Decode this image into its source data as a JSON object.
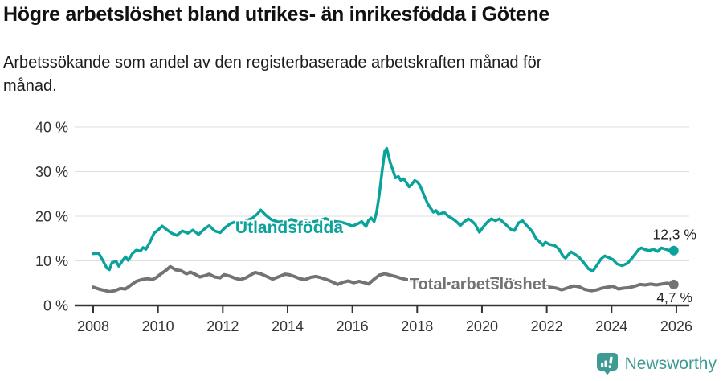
{
  "header": {
    "title": "Högre arbetslöshet bland utrikes- än inrikesfödda i Götene",
    "subtitle_lines": [
      "Arbetssökande som andel av den registerbaserade arbetskraften månad för",
      "månad."
    ]
  },
  "footer": {
    "brand": "Newsworthy",
    "logo_icon": "newsworthy-chart-bubble-icon"
  },
  "colors": {
    "series_foreign_born": "#0ba29b",
    "series_total": "#737373",
    "axis": "#333333",
    "grid": "#dddddd",
    "brand_teal": "#3f9a94",
    "background": "#ffffff",
    "text": "#111111"
  },
  "chart_data": {
    "type": "line",
    "title": "Högre arbetslöshet bland utrikes- än inrikesfödda i Götene",
    "subtitle": "Arbetssökande som andel av den registerbaserade arbetskraften månad för månad.",
    "xlabel": "",
    "ylabel": "",
    "y_unit": "%",
    "x_domain": [
      2007.4,
      2026.5
    ],
    "y_domain": [
      0,
      42.5
    ],
    "x_ticks": [
      2008,
      2010,
      2012,
      2014,
      2016,
      2018,
      2020,
      2022,
      2024,
      2026
    ],
    "y_ticks": [
      0,
      10,
      20,
      30,
      40
    ],
    "grid": "horizontal",
    "legend_position": "inline-labels",
    "series": [
      {
        "name": "Utlandsfödda",
        "color": "#0ba29b",
        "end_label": "12,3 %",
        "end_value": 12.3,
        "label_year": 2014.05,
        "label_value": 16.2,
        "points": [
          [
            2008.0,
            11.6
          ],
          [
            2008.17,
            11.7
          ],
          [
            2008.29,
            10.2
          ],
          [
            2008.42,
            8.4
          ],
          [
            2008.5,
            8.0
          ],
          [
            2008.58,
            9.6
          ],
          [
            2008.71,
            9.9
          ],
          [
            2008.79,
            8.8
          ],
          [
            2008.92,
            10.2
          ],
          [
            2009.0,
            10.9
          ],
          [
            2009.08,
            10.1
          ],
          [
            2009.21,
            11.6
          ],
          [
            2009.33,
            12.4
          ],
          [
            2009.46,
            12.2
          ],
          [
            2009.54,
            13.0
          ],
          [
            2009.63,
            12.6
          ],
          [
            2009.75,
            14.2
          ],
          [
            2009.88,
            16.2
          ],
          [
            2010.0,
            16.9
          ],
          [
            2010.13,
            17.8
          ],
          [
            2010.25,
            17.1
          ],
          [
            2010.42,
            16.2
          ],
          [
            2010.58,
            15.7
          ],
          [
            2010.75,
            16.7
          ],
          [
            2010.92,
            16.2
          ],
          [
            2011.08,
            16.9
          ],
          [
            2011.25,
            15.9
          ],
          [
            2011.46,
            17.3
          ],
          [
            2011.58,
            17.9
          ],
          [
            2011.75,
            16.7
          ],
          [
            2011.92,
            16.3
          ],
          [
            2012.08,
            17.5
          ],
          [
            2012.25,
            18.4
          ],
          [
            2012.42,
            18.8
          ],
          [
            2012.58,
            18.5
          ],
          [
            2012.75,
            19.1
          ],
          [
            2012.92,
            19.6
          ],
          [
            2013.08,
            20.6
          ],
          [
            2013.17,
            21.4
          ],
          [
            2013.33,
            20.2
          ],
          [
            2013.5,
            19.2
          ],
          [
            2013.71,
            18.7
          ],
          [
            2013.92,
            18.9
          ],
          [
            2014.13,
            19.3
          ],
          [
            2014.33,
            18.7
          ],
          [
            2014.54,
            19.1
          ],
          [
            2014.75,
            18.7
          ],
          [
            2014.96,
            19.0
          ],
          [
            2015.17,
            19.5
          ],
          [
            2015.38,
            18.9
          ],
          [
            2015.63,
            18.7
          ],
          [
            2015.83,
            18.3
          ],
          [
            2016.0,
            17.8
          ],
          [
            2016.17,
            18.3
          ],
          [
            2016.29,
            18.8
          ],
          [
            2016.42,
            17.7
          ],
          [
            2016.5,
            19.1
          ],
          [
            2016.58,
            19.6
          ],
          [
            2016.67,
            18.8
          ],
          [
            2016.75,
            21.0
          ],
          [
            2016.83,
            24.8
          ],
          [
            2016.92,
            30.2
          ],
          [
            2017.0,
            34.6
          ],
          [
            2017.06,
            35.2
          ],
          [
            2017.17,
            32.0
          ],
          [
            2017.25,
            30.3
          ],
          [
            2017.33,
            28.6
          ],
          [
            2017.42,
            28.9
          ],
          [
            2017.5,
            28.0
          ],
          [
            2017.58,
            28.4
          ],
          [
            2017.67,
            27.5
          ],
          [
            2017.75,
            26.6
          ],
          [
            2017.83,
            27.1
          ],
          [
            2017.92,
            28.0
          ],
          [
            2018.0,
            27.7
          ],
          [
            2018.08,
            27.0
          ],
          [
            2018.17,
            25.4
          ],
          [
            2018.33,
            22.7
          ],
          [
            2018.5,
            20.9
          ],
          [
            2018.58,
            21.3
          ],
          [
            2018.67,
            20.4
          ],
          [
            2018.83,
            20.9
          ],
          [
            2018.96,
            20.0
          ],
          [
            2019.08,
            19.5
          ],
          [
            2019.21,
            18.8
          ],
          [
            2019.33,
            17.9
          ],
          [
            2019.46,
            18.8
          ],
          [
            2019.58,
            19.4
          ],
          [
            2019.67,
            19.0
          ],
          [
            2019.79,
            18.2
          ],
          [
            2019.92,
            16.4
          ],
          [
            2020.04,
            17.6
          ],
          [
            2020.17,
            18.7
          ],
          [
            2020.29,
            19.4
          ],
          [
            2020.42,
            19.0
          ],
          [
            2020.54,
            19.4
          ],
          [
            2020.71,
            18.3
          ],
          [
            2020.88,
            17.1
          ],
          [
            2021.0,
            16.8
          ],
          [
            2021.13,
            18.5
          ],
          [
            2021.25,
            19.0
          ],
          [
            2021.42,
            17.6
          ],
          [
            2021.54,
            16.7
          ],
          [
            2021.67,
            15.0
          ],
          [
            2021.79,
            14.2
          ],
          [
            2021.88,
            13.5
          ],
          [
            2021.96,
            14.2
          ],
          [
            2022.08,
            13.7
          ],
          [
            2022.25,
            13.4
          ],
          [
            2022.38,
            12.6
          ],
          [
            2022.5,
            11.1
          ],
          [
            2022.58,
            10.6
          ],
          [
            2022.67,
            11.4
          ],
          [
            2022.75,
            12.0
          ],
          [
            2022.88,
            11.4
          ],
          [
            2023.0,
            10.8
          ],
          [
            2023.13,
            9.7
          ],
          [
            2023.29,
            8.2
          ],
          [
            2023.42,
            7.7
          ],
          [
            2023.54,
            8.9
          ],
          [
            2023.67,
            10.4
          ],
          [
            2023.79,
            11.1
          ],
          [
            2023.92,
            10.7
          ],
          [
            2024.04,
            10.3
          ],
          [
            2024.17,
            9.3
          ],
          [
            2024.33,
            8.9
          ],
          [
            2024.5,
            9.5
          ],
          [
            2024.63,
            10.6
          ],
          [
            2024.75,
            11.7
          ],
          [
            2024.83,
            12.5
          ],
          [
            2024.92,
            12.9
          ],
          [
            2025.04,
            12.5
          ],
          [
            2025.17,
            12.3
          ],
          [
            2025.29,
            12.6
          ],
          [
            2025.42,
            12.1
          ],
          [
            2025.54,
            12.9
          ],
          [
            2025.67,
            12.6
          ],
          [
            2025.79,
            12.3
          ],
          [
            2025.92,
            12.3
          ]
        ]
      },
      {
        "name": "Total arbetslöshet",
        "color": "#737373",
        "end_label": "4,7 %",
        "end_value": 4.7,
        "label_year": 2019.88,
        "label_value": 3.6,
        "points": [
          [
            2008.0,
            4.1
          ],
          [
            2008.17,
            3.7
          ],
          [
            2008.33,
            3.4
          ],
          [
            2008.5,
            3.1
          ],
          [
            2008.67,
            3.3
          ],
          [
            2008.83,
            3.8
          ],
          [
            2009.0,
            3.7
          ],
          [
            2009.17,
            4.6
          ],
          [
            2009.33,
            5.4
          ],
          [
            2009.5,
            5.8
          ],
          [
            2009.67,
            6.0
          ],
          [
            2009.83,
            5.8
          ],
          [
            2009.96,
            6.3
          ],
          [
            2010.08,
            7.0
          ],
          [
            2010.25,
            7.9
          ],
          [
            2010.38,
            8.7
          ],
          [
            2010.54,
            8.0
          ],
          [
            2010.71,
            7.8
          ],
          [
            2010.88,
            7.1
          ],
          [
            2011.0,
            7.5
          ],
          [
            2011.17,
            6.9
          ],
          [
            2011.29,
            6.4
          ],
          [
            2011.46,
            6.7
          ],
          [
            2011.58,
            7.0
          ],
          [
            2011.75,
            6.4
          ],
          [
            2011.92,
            6.2
          ],
          [
            2012.04,
            6.9
          ],
          [
            2012.21,
            6.6
          ],
          [
            2012.38,
            6.1
          ],
          [
            2012.54,
            5.8
          ],
          [
            2012.71,
            6.2
          ],
          [
            2012.88,
            6.9
          ],
          [
            2013.0,
            7.4
          ],
          [
            2013.17,
            7.1
          ],
          [
            2013.33,
            6.6
          ],
          [
            2013.54,
            5.9
          ],
          [
            2013.71,
            6.4
          ],
          [
            2013.92,
            7.0
          ],
          [
            2014.04,
            6.9
          ],
          [
            2014.21,
            6.5
          ],
          [
            2014.38,
            6.0
          ],
          [
            2014.54,
            5.8
          ],
          [
            2014.71,
            6.3
          ],
          [
            2014.88,
            6.5
          ],
          [
            2015.04,
            6.2
          ],
          [
            2015.21,
            5.8
          ],
          [
            2015.38,
            5.3
          ],
          [
            2015.54,
            4.7
          ],
          [
            2015.71,
            5.2
          ],
          [
            2015.88,
            5.5
          ],
          [
            2016.04,
            5.1
          ],
          [
            2016.21,
            5.4
          ],
          [
            2016.38,
            5.1
          ],
          [
            2016.5,
            4.8
          ],
          [
            2016.67,
            5.9
          ],
          [
            2016.83,
            6.8
          ],
          [
            2017.0,
            7.1
          ],
          [
            2017.17,
            6.8
          ],
          [
            2017.33,
            6.5
          ],
          [
            2017.5,
            6.1
          ],
          [
            2017.67,
            5.8
          ],
          [
            2017.88,
            5.6
          ],
          [
            2018.08,
            5.4
          ],
          [
            2018.33,
            5.1
          ],
          [
            2018.58,
            4.9
          ],
          [
            2018.83,
            4.8
          ],
          [
            2019.08,
            4.9
          ],
          [
            2019.33,
            5.1
          ],
          [
            2019.58,
            5.2
          ],
          [
            2019.83,
            5.1
          ],
          [
            2020.08,
            5.5
          ],
          [
            2020.33,
            6.0
          ],
          [
            2020.58,
            6.1
          ],
          [
            2020.83,
            5.7
          ],
          [
            2021.08,
            5.3
          ],
          [
            2021.33,
            5.0
          ],
          [
            2021.58,
            4.7
          ],
          [
            2021.83,
            4.4
          ],
          [
            2022.08,
            4.1
          ],
          [
            2022.29,
            3.9
          ],
          [
            2022.46,
            3.5
          ],
          [
            2022.63,
            3.9
          ],
          [
            2022.83,
            4.4
          ],
          [
            2023.0,
            4.2
          ],
          [
            2023.17,
            3.6
          ],
          [
            2023.38,
            3.3
          ],
          [
            2023.54,
            3.5
          ],
          [
            2023.71,
            3.9
          ],
          [
            2023.88,
            4.1
          ],
          [
            2024.04,
            4.3
          ],
          [
            2024.21,
            3.7
          ],
          [
            2024.38,
            3.9
          ],
          [
            2024.54,
            4.0
          ],
          [
            2024.71,
            4.3
          ],
          [
            2024.88,
            4.7
          ],
          [
            2025.04,
            4.6
          ],
          [
            2025.21,
            4.8
          ],
          [
            2025.38,
            4.6
          ],
          [
            2025.54,
            4.8
          ],
          [
            2025.71,
            5.0
          ],
          [
            2025.83,
            4.8
          ],
          [
            2025.92,
            4.7
          ]
        ]
      }
    ]
  }
}
